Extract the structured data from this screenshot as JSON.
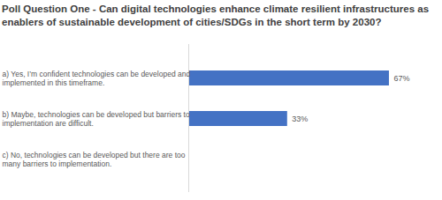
{
  "chart_data": {
    "type": "bar",
    "orientation": "horizontal",
    "title": "Poll Question One - Can digital technologies enhance climate resilient infrastructures as enablers of sustainable development of cities/SDGs in the short term by 2030?",
    "categories": [
      "a) Yes, I’m confident technologies can be developed and implemented in this timeframe.",
      "b) Maybe, technologies can be developed but barriers to implementation are difficult.",
      "c) No, technologies can be developed but there are too many barriers to implementation."
    ],
    "values": [
      67,
      33,
      0
    ],
    "value_labels": [
      "67%",
      "33%",
      null
    ],
    "data_labels": true,
    "color": "#4472c4",
    "xlim": [
      0,
      80
    ],
    "tick_labels": false,
    "grid": false
  }
}
